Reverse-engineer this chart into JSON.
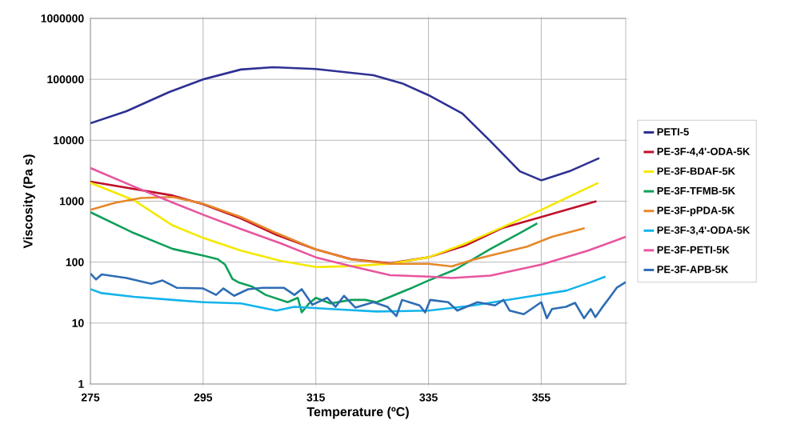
{
  "chart_data": {
    "type": "line",
    "xlabel": "Temperature (ºC)",
    "ylabel": "Viscosity (Pa s)",
    "log": "y",
    "grid": true,
    "legend": "right",
    "xlim": [
      275,
      370
    ],
    "xticks": [
      275,
      295,
      315,
      335,
      355
    ],
    "ylim": [
      1,
      1000000
    ],
    "yticks": [
      1,
      10,
      100,
      1000,
      10000,
      100000,
      1000000
    ],
    "series": [
      {
        "name": "PETI-5",
        "color": "#2e3192",
        "x": [
          275,
          281.4,
          289,
          295,
          301.7,
          307.4,
          315,
          325.2,
          330.3,
          335,
          341,
          346,
          351.2,
          355,
          360,
          365.3
        ],
        "values": [
          19000,
          30000,
          62000,
          100000,
          145000,
          158000,
          148000,
          117000,
          86000,
          55000,
          27500,
          9600,
          3100,
          2200,
          3100,
          5100
        ]
      },
      {
        "name": "PE-3F-4,4'-ODA-5K",
        "color": "#c0102a",
        "x": [
          275,
          289.6,
          295,
          301.7,
          308,
          315,
          321.3,
          328.2,
          335,
          341.7,
          348,
          355,
          364.8
        ],
        "values": [
          2100,
          1240,
          890,
          520,
          280,
          162,
          112,
          96,
          120,
          190,
          360,
          550,
          1000
        ]
      },
      {
        "name": "PE-3F-BDAF-5K",
        "color": "#f5e800",
        "x": [
          275,
          282.7,
          289.6,
          295,
          301.7,
          308.7,
          315,
          321.3,
          328.2,
          335,
          341.7,
          348,
          355,
          365.1
        ],
        "values": [
          2000,
          1040,
          400,
          250,
          155,
          105,
          83,
          86,
          94,
          120,
          205,
          370,
          720,
          2000
        ]
      },
      {
        "name": "PE-3F-TFMB-5K",
        "color": "#0fa05a",
        "x": [
          275,
          282.7,
          289.6,
          295,
          297.6,
          298.9,
          300.2,
          301.4,
          303.6,
          306.1,
          310,
          311.8,
          312.5,
          313.8,
          315,
          317.6,
          321.3,
          323.8,
          325.8,
          328.2,
          332.1,
          335,
          339.8,
          346,
          351.2,
          354.3
        ],
        "values": [
          660,
          300,
          165,
          128,
          112,
          91,
          53,
          46,
          40,
          29,
          22,
          26,
          15,
          21,
          26,
          21,
          24,
          24,
          22,
          27,
          38,
          50,
          76,
          165,
          300,
          435
        ]
      },
      {
        "name": "PE-3F-pPDA-5K",
        "color": "#e6882a",
        "x": [
          275,
          279.5,
          284,
          289.6,
          295,
          301.7,
          308,
          315,
          321.3,
          328.2,
          335,
          339.1,
          343,
          352.5,
          356.9,
          362.7
        ],
        "values": [
          720,
          950,
          1130,
          1170,
          910,
          550,
          300,
          162,
          110,
          94,
          94,
          85,
          110,
          180,
          260,
          360
        ]
      },
      {
        "name": "PE-3F-3,4'-ODA-5K",
        "color": "#14b4eb",
        "x": [
          275,
          277,
          282.7,
          289.6,
          295,
          301.7,
          308,
          311.2,
          317.6,
          325.8,
          335,
          343,
          352.5,
          359.4,
          363.8,
          366.4
        ],
        "values": [
          36,
          31,
          27,
          24,
          22,
          21,
          16,
          18.5,
          17,
          15.5,
          16,
          19.5,
          27,
          34,
          47,
          58
        ]
      },
      {
        "name": "PE-3F-PETI-5K",
        "color": "#e8559e",
        "x": [
          275,
          282.7,
          289.6,
          295,
          301.7,
          308.7,
          315,
          321.3,
          328.2,
          335,
          339.1,
          346,
          355,
          363.3,
          370
        ],
        "values": [
          3500,
          1740,
          950,
          600,
          350,
          205,
          120,
          86,
          61,
          58,
          55,
          60,
          91,
          155,
          260
        ]
      },
      {
        "name": "PE-3F-APB-5K",
        "color": "#2e6db4",
        "x": [
          275,
          276,
          277,
          281.4,
          285.8,
          287.8,
          290.3,
          295,
          297.3,
          298.6,
          300.5,
          303,
          305.6,
          309.3,
          311.2,
          312.5,
          314.4,
          317,
          318.5,
          320,
          322,
          325.2,
          327.7,
          329.3,
          330.3,
          333.4,
          334.4,
          335.3,
          338.5,
          340.1,
          343.7,
          346.8,
          348.3,
          349.4,
          351.9,
          355,
          356,
          356.9,
          359.4,
          361,
          362.6,
          363.8,
          364.6,
          365.8,
          367.1,
          368.4,
          370
        ],
        "values": [
          65,
          52,
          63,
          55,
          44,
          50,
          38,
          37,
          29,
          37,
          28,
          36,
          38,
          38,
          29,
          36,
          20,
          26,
          18.5,
          28,
          18,
          22,
          18.5,
          13,
          24,
          19.5,
          15,
          24,
          22,
          16,
          22,
          19.5,
          24,
          16,
          14,
          22,
          12,
          17,
          18.5,
          21.5,
          12,
          17,
          12.5,
          18,
          26,
          38,
          47
        ]
      }
    ]
  }
}
